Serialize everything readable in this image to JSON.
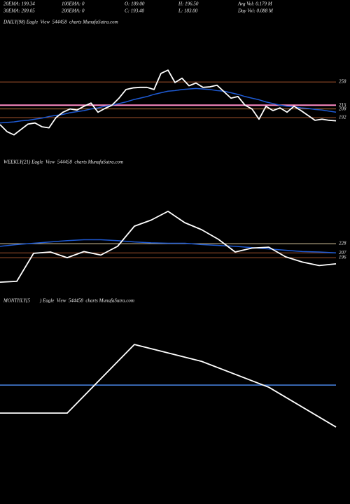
{
  "header": {
    "items": [
      [
        "20EMA: 199.34",
        "100EMA: 0",
        "O: 189.00",
        "H: 196.50",
        "Avg Vol: 0.179 M"
      ],
      [
        "30EMA: 209.05",
        "200EMA: 0",
        "C: 193.40",
        "L: 183.00",
        "Day Vol: 0.088 M"
      ]
    ]
  },
  "chart_data": [
    {
      "type": "line",
      "title": "DAILY(98) Eagle  View  544458  charts MunafaSutra.com",
      "categories": [
        null,
        null,
        null,
        null,
        null,
        null,
        null,
        null,
        null,
        null,
        null,
        null,
        null,
        null,
        null,
        null,
        null,
        null,
        null,
        null,
        null,
        null,
        null,
        null,
        null,
        null,
        null,
        null,
        null,
        null,
        null,
        null,
        null,
        null,
        null,
        null,
        null,
        null,
        null,
        null,
        null,
        null,
        null,
        null,
        null,
        null,
        null,
        null,
        null
      ],
      "series": [
        {
          "color": "#ffffff",
          "values": [
            179,
            166,
            160,
            170,
            180,
            182,
            175,
            173,
            192,
            202,
            208,
            206,
            213,
            219,
            202,
            209,
            215,
            228,
            244,
            247,
            248,
            248,
            244,
            274,
            280,
            257,
            265,
            251,
            256,
            248,
            249,
            252,
            240,
            228,
            231,
            215,
            208,
            189,
            213,
            205,
            210,
            202,
            213,
            205,
            196,
            187,
            189,
            187,
            186
          ]
        },
        {
          "color": "#1e5bd6",
          "values": [
            182,
            183,
            184,
            186,
            187,
            189,
            191,
            194,
            196,
            198,
            201,
            203,
            205,
            208,
            210,
            213,
            215,
            218,
            221,
            225,
            228,
            231,
            235,
            238,
            241,
            242,
            244,
            245,
            246,
            245,
            244,
            242,
            241,
            238,
            235,
            231,
            228,
            225,
            221,
            218,
            215,
            213,
            212,
            210,
            209,
            207,
            206,
            204,
            202
          ]
        }
      ],
      "ylim": [
        131,
        371
      ],
      "yticks": [
        258,
        215,
        208,
        192
      ],
      "tick_colors": [
        "#a0522d",
        "#ff8cc6",
        "#b8733a",
        "#a0522d"
      ]
    },
    {
      "type": "line",
      "title": "WEEKLY(21) Eagle  View  544458  charts MunafaSutra.com",
      "categories": [
        null,
        null,
        null,
        null,
        null,
        null,
        null,
        null,
        null,
        null,
        null,
        null,
        null,
        null,
        null,
        null,
        null,
        null,
        null,
        null,
        null
      ],
      "series": [
        {
          "color": "#ffffff",
          "values": [
            140,
            142,
            206,
            209,
            196,
            210,
            202,
            222,
            268,
            282,
            302,
            276,
            260,
            238,
            209,
            218,
            220,
            198,
            186,
            178,
            182
          ]
        },
        {
          "color": "#1e5bd6",
          "values": [
            222,
            226,
            229,
            232,
            235,
            237,
            237,
            235,
            232,
            230,
            229,
            229,
            226,
            224,
            222,
            219,
            216,
            213,
            210,
            209,
            207
          ]
        }
      ],
      "ylim": [
        81,
        401
      ],
      "yticks": [
        228,
        207,
        196
      ],
      "tick_colors": [
        "#d9c9a0",
        "#a0522d",
        "#a0522d"
      ]
    },
    {
      "type": "line",
      "title": "MONTHLY(5        ) Eagle  View  544458  charts MunafaSutra.com",
      "categories": [
        null,
        null,
        null,
        null,
        null,
        null
      ],
      "series": [
        {
          "color": "#ffffff",
          "values": [
            140,
            140,
            302,
            262,
            201,
            107
          ]
        },
        {
          "color": "#4a86e8",
          "values": [
            206,
            206,
            206,
            206,
            206,
            206
          ]
        }
      ],
      "ylim": [
        -40,
        355
      ],
      "yticks": [],
      "tick_colors": []
    }
  ]
}
